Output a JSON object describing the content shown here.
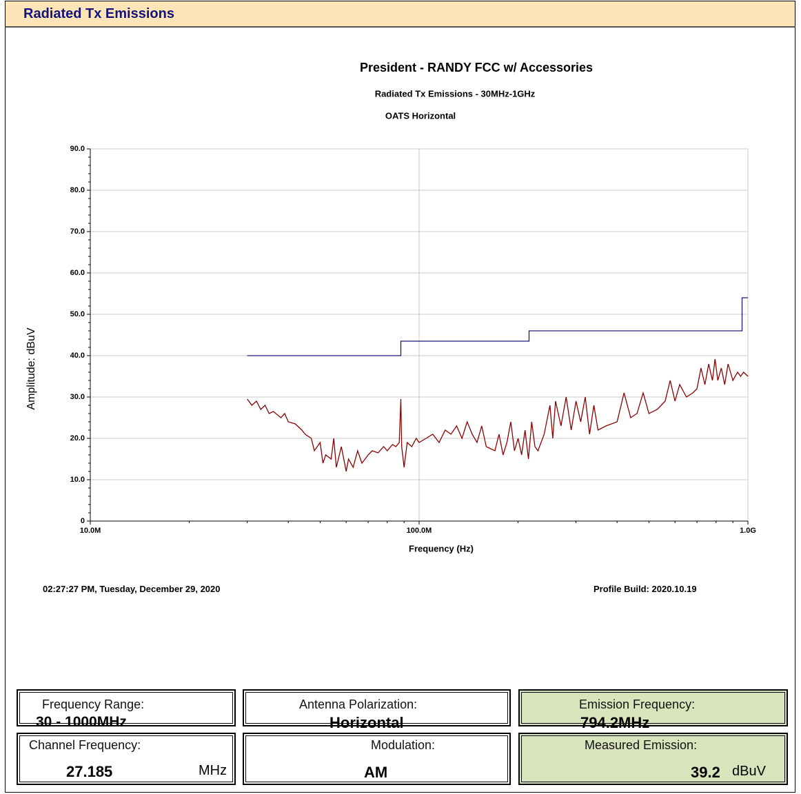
{
  "header": {
    "title": "Radiated Tx Emissions"
  },
  "chart_data": {
    "type": "line",
    "title": "President - RANDY FCC w/ Accessories",
    "subtitle": "Radiated Tx Emissions - 30MHz-1GHz",
    "subtitle2": "OATS Horizontal",
    "x_label": "Frequency (Hz)",
    "y_label": "Amplitude: dBuV",
    "xscale": "log",
    "grid": true,
    "xlim": [
      10000000.0,
      1000000000.0
    ],
    "xticks": [
      {
        "value": 10000000.0,
        "label": "10.0M"
      },
      {
        "value": 100000000.0,
        "label": "100.0M"
      },
      {
        "value": 1000000000.0,
        "label": "1.0G"
      }
    ],
    "ylim": [
      0,
      90
    ],
    "yticks": [
      0,
      {
        "value": 10,
        "label": "10.0"
      },
      {
        "value": 20,
        "label": "20.0"
      },
      {
        "value": 30,
        "label": "30.0"
      },
      {
        "value": 40,
        "label": "40.0"
      },
      {
        "value": 50,
        "label": "50.0"
      },
      {
        "value": 60,
        "label": "60.0"
      },
      {
        "value": 70,
        "label": "70.0"
      },
      {
        "value": 80,
        "label": "80.0"
      },
      {
        "value": 90,
        "label": "90.0"
      }
    ],
    "series": [
      {
        "color": "#1a1a7a",
        "x": [
          30000000.0,
          88000000.0,
          88000000.0,
          216000000.0,
          216000000.0,
          960000000.0,
          960000000.0,
          1000000000.0
        ],
        "values": [
          40,
          40,
          43.5,
          43.5,
          46,
          46,
          54,
          54
        ]
      },
      {
        "color": "#8b0000",
        "x": [
          30000000.0,
          31000000.0,
          32000000.0,
          33000000.0,
          34000000.0,
          35000000.0,
          36000000.0,
          38000000.0,
          39000000.0,
          40000000.0,
          42000000.0,
          44000000.0,
          45000000.0,
          47000000.0,
          48000000.0,
          50000000.0,
          51000000.0,
          52000000.0,
          54000000.0,
          55000000.0,
          56000000.0,
          58000000.0,
          60000000.0,
          61000000.0,
          63000000.0,
          65000000.0,
          67000000.0,
          70000000.0,
          72000000.0,
          75000000.0,
          78000000.0,
          80000000.0,
          83000000.0,
          85000000.0,
          87000000.0,
          88000000.0,
          88500000.0,
          90000000.0,
          92000000.0,
          95000000.0,
          98000000.0,
          100000000.0,
          105000000.0,
          110000000.0,
          115000000.0,
          120000000.0,
          125000000.0,
          130000000.0,
          135000000.0,
          140000000.0,
          145000000.0,
          150000000.0,
          155000000.0,
          160000000.0,
          170000000.0,
          175000000.0,
          180000000.0,
          185000000.0,
          190000000.0,
          195000000.0,
          200000000.0,
          205000000.0,
          210000000.0,
          215000000.0,
          220000000.0,
          225000000.0,
          230000000.0,
          240000000.0,
          250000000.0,
          255000000.0,
          260000000.0,
          270000000.0,
          280000000.0,
          290000000.0,
          300000000.0,
          310000000.0,
          320000000.0,
          330000000.0,
          340000000.0,
          350000000.0,
          370000000.0,
          400000000.0,
          420000000.0,
          440000000.0,
          460000000.0,
          480000000.0,
          500000000.0,
          530000000.0,
          560000000.0,
          580000000.0,
          600000000.0,
          620000000.0,
          650000000.0,
          680000000.0,
          700000000.0,
          720000000.0,
          740000000.0,
          760000000.0,
          780000000.0,
          794200000.0,
          810000000.0,
          830000000.0,
          850000000.0,
          870000000.0,
          900000000.0,
          930000000.0,
          950000000.0,
          970000000.0,
          1000000000.0
        ],
        "values": [
          29.5,
          28,
          29,
          27,
          28,
          26,
          26.5,
          25,
          26,
          24,
          23.5,
          22,
          21,
          20,
          17,
          19,
          14,
          16,
          15,
          20,
          13,
          18,
          12,
          15,
          13,
          17,
          14,
          16,
          17,
          16.5,
          18,
          17,
          18.5,
          18,
          19,
          29.5,
          18,
          13,
          19,
          18,
          20,
          19,
          20,
          21,
          19,
          22,
          21,
          23,
          20,
          24,
          21,
          19,
          23,
          18,
          17,
          21,
          16,
          19,
          24,
          17,
          20,
          16,
          22,
          15,
          24,
          18,
          17,
          21,
          28,
          20,
          29,
          23,
          30,
          22,
          29,
          24,
          30,
          21,
          28,
          22,
          23,
          24,
          31,
          25,
          26,
          31,
          26,
          27,
          29,
          34,
          29,
          33,
          30,
          31,
          32,
          37,
          33,
          38,
          34,
          39.2,
          34,
          37,
          33,
          38,
          34,
          36,
          35,
          36,
          35
        ]
      }
    ]
  },
  "footer": {
    "timestamp": "02:27:27 PM, Tuesday, December 29, 2020",
    "build": "Profile Build: 2020.10.19"
  },
  "boxes": [
    {
      "label": "Frequency Range:",
      "value": "30 - 1000MHz"
    },
    {
      "label": "Antenna Polarization:",
      "value": "Horizontal"
    },
    {
      "label": "Emission Frequency:",
      "value": "794.2MHz"
    },
    {
      "label": "Channel Frequency:",
      "value": "27.185",
      "unit": "MHz"
    },
    {
      "label": "Modulation:",
      "value": "AM"
    },
    {
      "label": "Measured Emission:",
      "value": "39.2",
      "unit": "dBuV"
    }
  ]
}
